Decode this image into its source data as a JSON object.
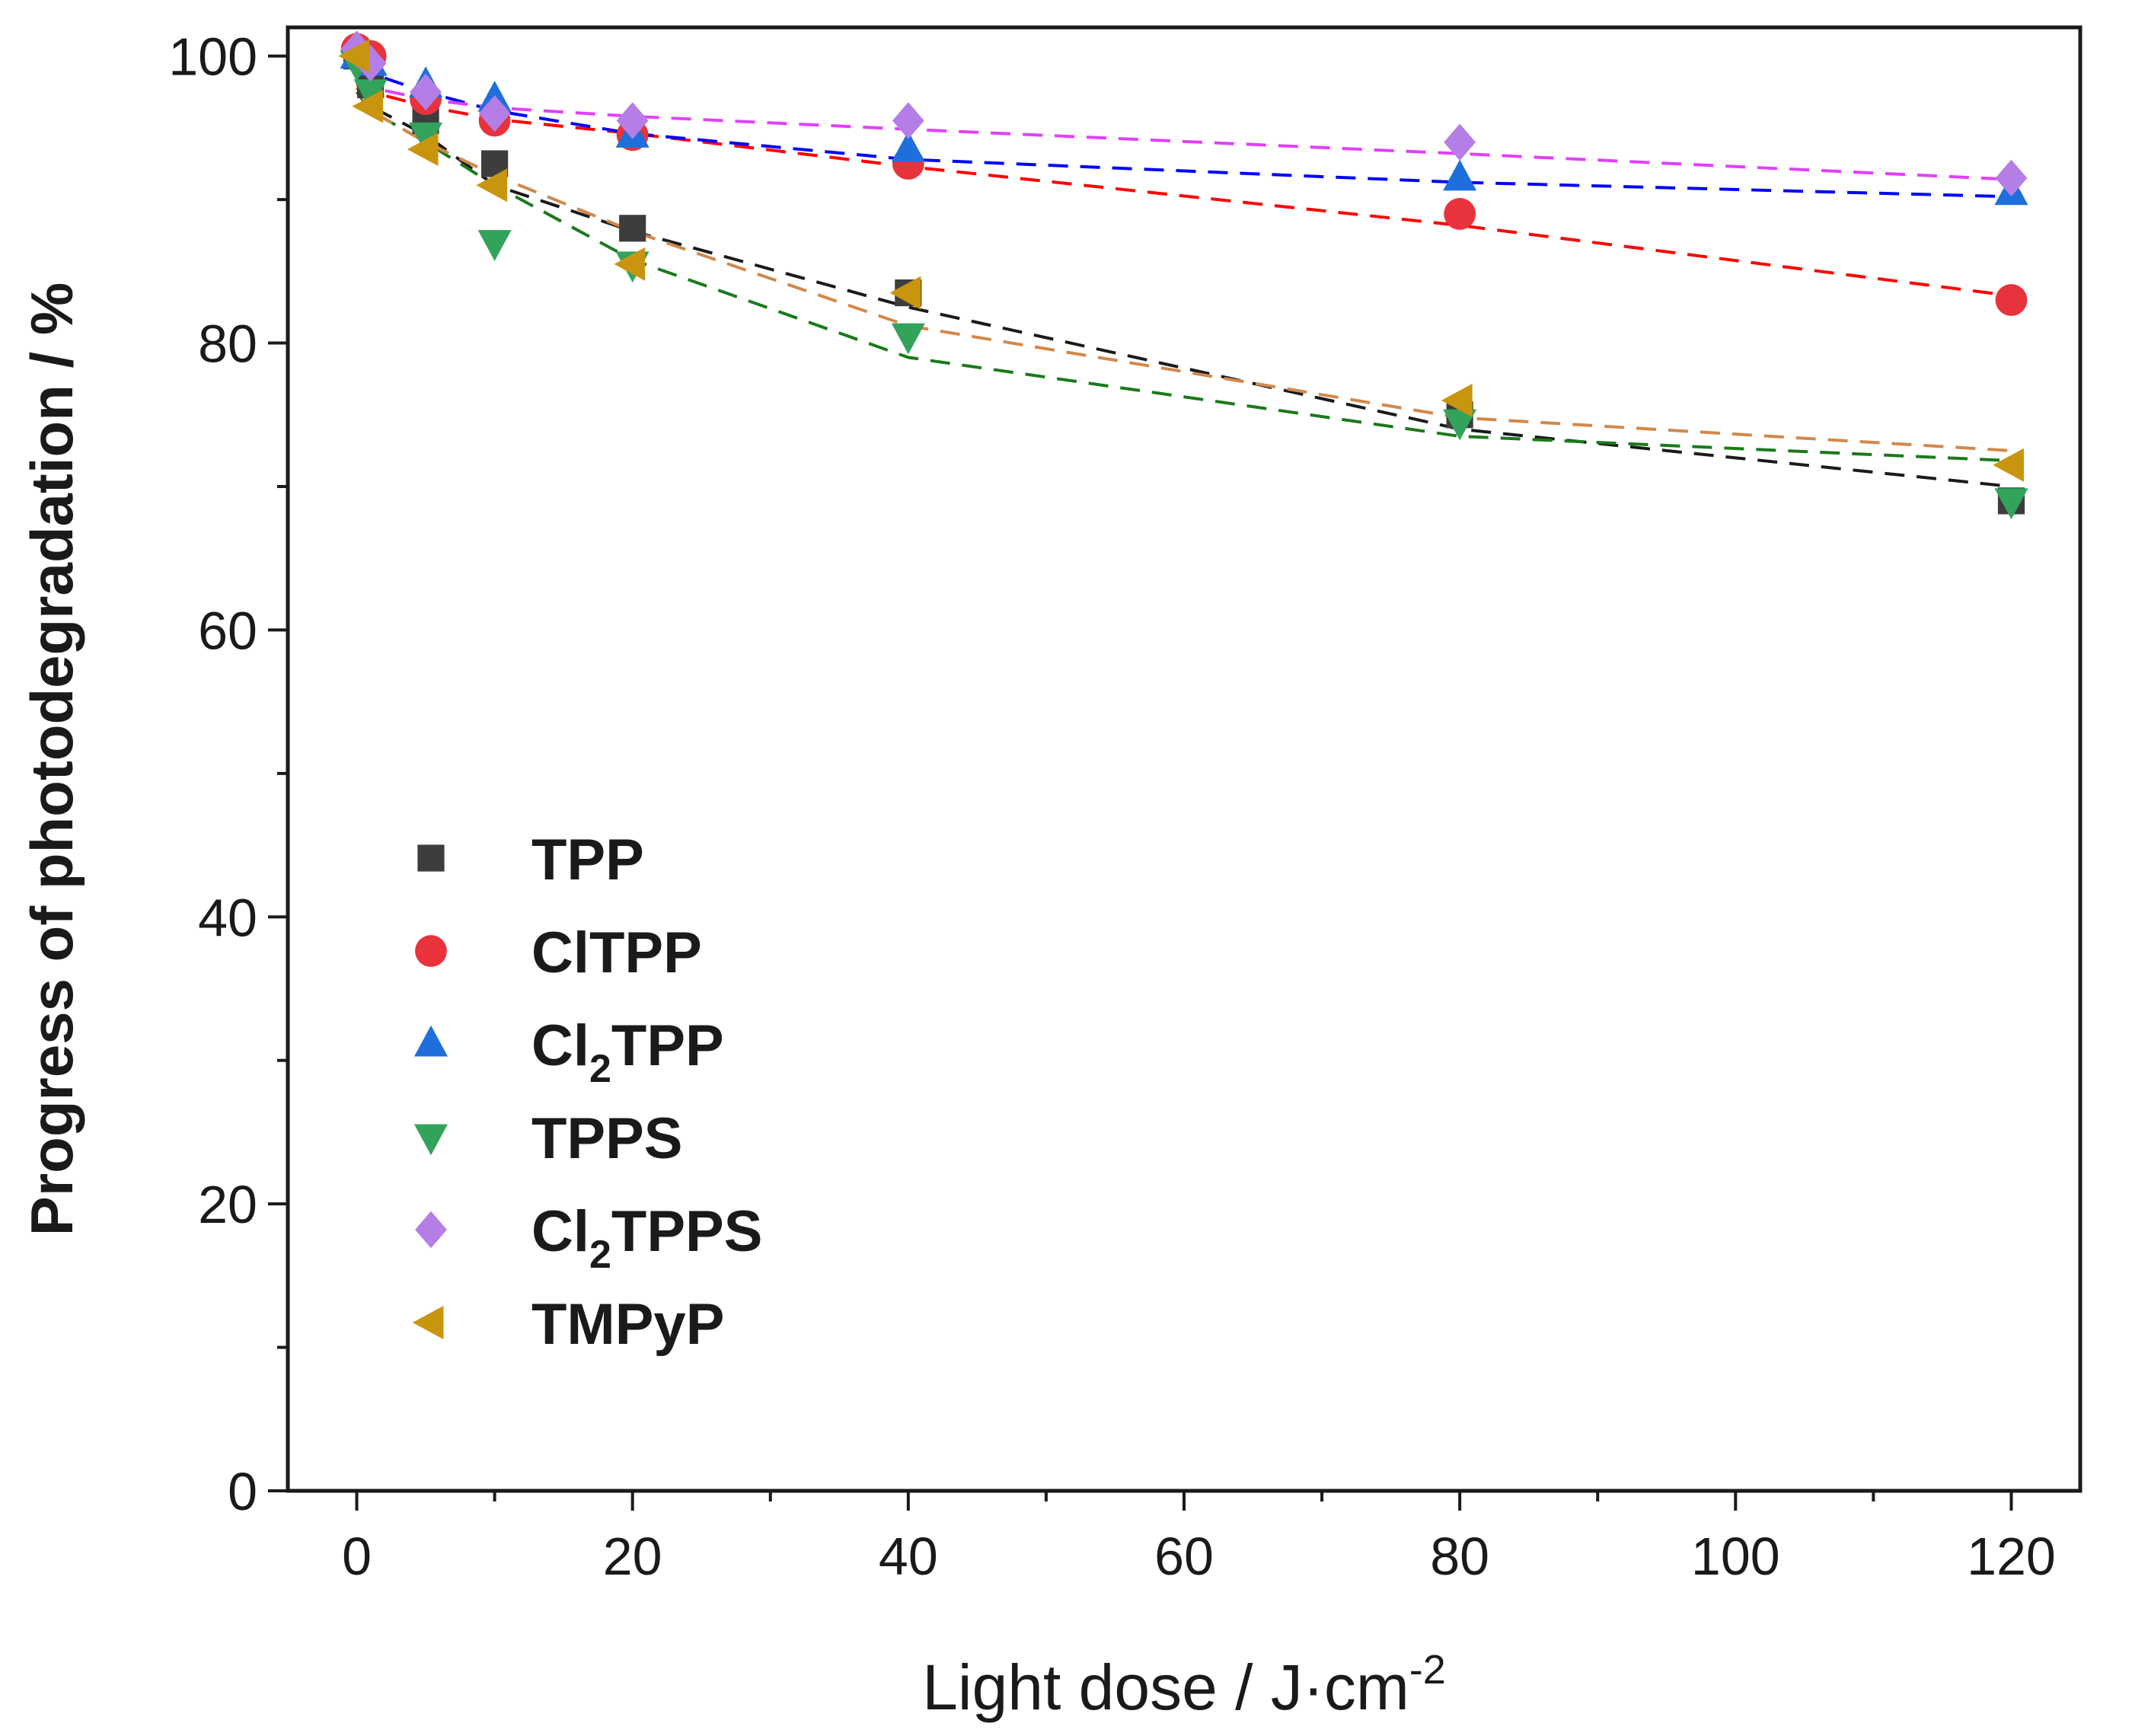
{
  "chart_data": {
    "type": "scatter",
    "title": "",
    "xlabel": "Light dose / J·cm",
    "xlabel_superscript": "-2",
    "ylabel": "Progress of photodegradation / %",
    "xlim": [
      -5,
      125
    ],
    "ylim": [
      0,
      102
    ],
    "x_ticks": [
      0,
      20,
      40,
      60,
      80,
      100,
      120
    ],
    "y_ticks": [
      0,
      20,
      40,
      60,
      80,
      100
    ],
    "x_tick_labels": [
      "0",
      "20",
      "40",
      "60",
      "80",
      "100",
      "120"
    ],
    "y_tick_labels": [
      "0",
      "20",
      "40",
      "60",
      "80",
      "100"
    ],
    "grid": false,
    "legend_position": "middle-left",
    "series": [
      {
        "name": "TPP",
        "label_base": "TPP",
        "label_sub": "",
        "label_after": "",
        "marker": "square",
        "color": "#3d3d3d",
        "line_color": "#1a1a1a",
        "x": [
          0,
          1,
          5,
          10,
          20,
          40,
          80,
          120
        ],
        "y": [
          100,
          98,
          95.5,
          92.5,
          88,
          83.5,
          75,
          69
        ],
        "fit": [
          98.2,
          96.5,
          94.5,
          91.0,
          87.8,
          82.5,
          74.0,
          70.0
        ]
      },
      {
        "name": "ClTPP",
        "label_base": "ClTPP",
        "label_sub": "",
        "label_after": "",
        "marker": "circle",
        "color": "#e8333c",
        "line_color": "#ff0000",
        "x": [
          0,
          1,
          5,
          10,
          20,
          40,
          80,
          120
        ],
        "y": [
          100.5,
          100,
          97,
          95.5,
          94.5,
          92.5,
          89,
          83
        ],
        "fit": [
          98.0,
          97.5,
          96.5,
          95.6,
          94.6,
          92.3,
          88.2,
          83.3
        ]
      },
      {
        "name": "Cl2TPP",
        "label_base": "Cl",
        "label_sub": "2",
        "label_after": "TPP",
        "marker": "triangle-up",
        "color": "#1e6fdc",
        "line_color": "#0000ff",
        "x": [
          0,
          1,
          5,
          10,
          20,
          40,
          80,
          120
        ],
        "y": [
          100,
          99.5,
          98,
          97,
          94.5,
          93.5,
          91.5,
          90.5
        ],
        "fit": [
          99.5,
          98.8,
          97.5,
          96.2,
          94.6,
          92.8,
          91.2,
          90.2
        ]
      },
      {
        "name": "TPPS",
        "label_base": "TPPS",
        "label_sub": "",
        "label_after": "",
        "marker": "triangle-down",
        "color": "#33a35c",
        "line_color": "#1a7a1a",
        "x": [
          0,
          1,
          5,
          10,
          20,
          40,
          80,
          120
        ],
        "y": [
          99.5,
          97.5,
          94.5,
          87,
          85.5,
          80.5,
          74.5,
          69
        ],
        "fit": [
          97.5,
          96.2,
          94.0,
          91.0,
          85.8,
          79.0,
          73.5,
          71.8
        ]
      },
      {
        "name": "Cl2TPPS",
        "label_base": "Cl",
        "label_sub": "2",
        "label_after": "TPPS",
        "marker": "diamond",
        "color": "#b57de6",
        "line_color": "#e040fb",
        "x": [
          0,
          1,
          5,
          10,
          20,
          40,
          80,
          120
        ],
        "y": [
          100.5,
          99.5,
          97.5,
          96,
          95.5,
          95.5,
          94,
          91.5
        ],
        "fit": [
          98.5,
          97.8,
          97.0,
          96.4,
          95.8,
          94.9,
          93.2,
          91.4
        ]
      },
      {
        "name": "TMPyP",
        "label_base": "TMPyP",
        "label_sub": "",
        "label_after": "",
        "marker": "triangle-left",
        "color": "#c9950f",
        "line_color": "#d2884a",
        "x": [
          0,
          1,
          5,
          10,
          20,
          40,
          80,
          120
        ],
        "y": [
          100,
          96.5,
          93.5,
          91,
          85.5,
          83.5,
          76,
          71.5
        ],
        "fit": [
          97.8,
          96.2,
          94.0,
          91.7,
          87.8,
          81.2,
          74.8,
          72.5
        ]
      }
    ]
  }
}
